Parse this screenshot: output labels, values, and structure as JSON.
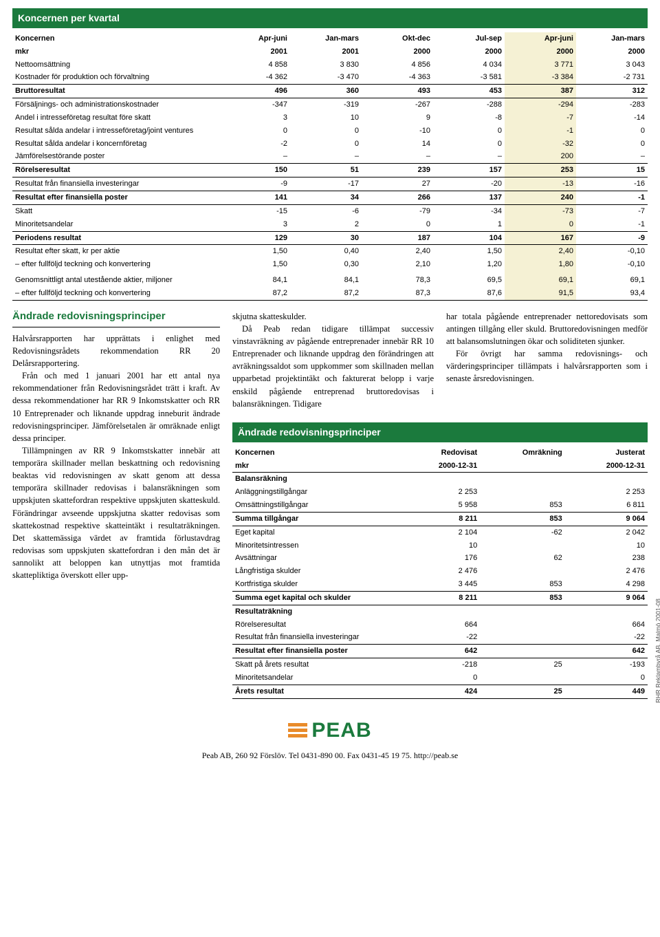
{
  "colors": {
    "green": "#1b7a3d",
    "highlight": "#f5f1d4",
    "orange": "#e98b2a"
  },
  "main_table": {
    "title": "Koncernen per kvartal",
    "header_top": [
      "Koncernen",
      "Apr-juni",
      "Jan-mars",
      "Okt-dec",
      "Jul-sep",
      "Apr-juni",
      "Jan-mars"
    ],
    "header_sub": [
      "mkr",
      "2001",
      "2001",
      "2000",
      "2000",
      "2000",
      "2000"
    ],
    "rows": [
      {
        "label": "Nettoomsättning",
        "vals": [
          "4 858",
          "3 830",
          "4 856",
          "4 034",
          "3 771",
          "3 043"
        ],
        "bot": false
      },
      {
        "label": "Kostnader för produktion och förvaltning",
        "vals": [
          "-4 362",
          "-3 470",
          "-4 363",
          "-3 581",
          "-3 384",
          "-2 731"
        ],
        "bot": true
      },
      {
        "label": "Bruttoresultat",
        "vals": [
          "496",
          "360",
          "493",
          "453",
          "387",
          "312"
        ],
        "bold": true,
        "top": false,
        "bot": false
      },
      {
        "label": "Försäljnings- och administrationskostnader",
        "vals": [
          "-347",
          "-319",
          "-267",
          "-288",
          "-294",
          "-283"
        ],
        "top": true
      },
      {
        "label": "Andel i intresseföretag resultat före skatt",
        "vals": [
          "3",
          "10",
          "9",
          "-8",
          "-7",
          "-14"
        ]
      },
      {
        "label": "Resultat sålda andelar i intresseföretag/joint ventures",
        "vals": [
          "0",
          "0",
          "-10",
          "0",
          "-1",
          "0"
        ]
      },
      {
        "label": "Resultat sålda andelar i koncernföretag",
        "vals": [
          "-2",
          "0",
          "14",
          "0",
          "-32",
          "0"
        ]
      },
      {
        "label": "Jämförelsestörande poster",
        "vals": [
          "–",
          "–",
          "–",
          "–",
          "200",
          "–"
        ],
        "bot": true
      },
      {
        "label": "Rörelseresultat",
        "vals": [
          "150",
          "51",
          "239",
          "157",
          "253",
          "15"
        ],
        "bold": true
      },
      {
        "label": "Resultat från finansiella investeringar",
        "vals": [
          "-9",
          "-17",
          "27",
          "-20",
          "-13",
          "-16"
        ],
        "top": true,
        "bot": true
      },
      {
        "label": "Resultat efter finansiella poster",
        "vals": [
          "141",
          "34",
          "266",
          "137",
          "240",
          "-1"
        ],
        "bold": true
      },
      {
        "label": "Skatt",
        "vals": [
          "-15",
          "-6",
          "-79",
          "-34",
          "-73",
          "-7"
        ],
        "top": true
      },
      {
        "label": "Minoritetsandelar",
        "vals": [
          "3",
          "2",
          "0",
          "1",
          "0",
          "-1"
        ],
        "bot": true
      },
      {
        "label": "Periodens resultat",
        "vals": [
          "129",
          "30",
          "187",
          "104",
          "167",
          "-9"
        ],
        "bold": true
      },
      {
        "label": "Resultat efter skatt, kr per aktie",
        "vals": [
          "1,50",
          "0,40",
          "2,40",
          "1,50",
          "2,40",
          "-0,10"
        ],
        "top": true
      },
      {
        "label": "– efter fullföljd teckning och konvertering",
        "vals": [
          "1,50",
          "0,30",
          "2,10",
          "1,20",
          "1,80",
          "-0,10"
        ],
        "bot": false
      },
      {
        "label": "Genomsnittligt antal utestående aktier, miljoner",
        "vals": [
          "84,1",
          "84,1",
          "78,3",
          "69,5",
          "69,1",
          "69,1"
        ],
        "gaptop": true
      },
      {
        "label": "– efter fullföljd teckning och konvertering",
        "vals": [
          "87,2",
          "87,2",
          "87,3",
          "87,6",
          "91,5",
          "93,4"
        ],
        "bot": true
      }
    ],
    "highlight_col": 5
  },
  "article": {
    "heading": "Ändrade redovisningsprinciper",
    "p1": "Halvårsrapporten har upprättats i enlighet med Redovisningsrådets rekommendation RR 20 Delårsrapportering.",
    "p2": "Från och med 1 januari 2001 har ett antal nya rekommendationer från Redovisningsrådet trätt i kraft. Av dessa rekommendationer har RR 9 Inkomstskatter och RR 10 Entreprenader och liknande uppdrag inneburit ändrade redovisningsprinciper. Jämförelsetalen är omräknade enligt dessa principer.",
    "p3": "Tillämpningen av RR 9 Inkomstskatter innebär att temporära skillnader mellan beskattning och redovisning beaktas vid redovisningen av skatt genom att dessa temporära skillnader redovisas i balansräkningen som uppskjuten skattefordran respektive uppskjuten skatteskuld. Förändringar avseende uppskjutna skatter redovisas som skattekostnad respektive skatteintäkt i resultaträkningen. Det skattemässiga värdet av framtida förlustavdrag redovisas som uppskjuten skattefordran i den mån det är sannolikt att beloppen kan utnyttjas mot framtida skattepliktiga överskott eller uppskjutna skatteskulder.",
    "p4": "Då Peab redan tidigare tillämpat successiv vinstavräkning av pågående entreprenader innebär RR 10 Entreprenader och liknande uppdrag den förändringen att avräkningssaldot som uppkommer som skillnaden mellan upparbetad projektintäkt och fakturerat belopp i varje enskild pågående entreprenad bruttoredovisas i balansräkningen. Tidigare har totala pågående entreprenader nettoredovisats som antingen tillgång eller skuld. Bruttoredovisningen medför att balansomslutningen ökar och soliditeten sjunker.",
    "p5": "För övrigt har samma redovisnings- och värderingsprinciper tillämpats i halvårsrapporten som i senaste årsredovisningen."
  },
  "small_table": {
    "title": "Ändrade redovisningsprinciper",
    "header_top": [
      "Koncernen",
      "Redovisat",
      "Omräkning",
      "Justerat"
    ],
    "header_sub": [
      "mkr",
      "2000-12-31",
      "",
      "2000-12-31"
    ],
    "rows": [
      {
        "label": "Balansräkning",
        "vals": [
          "",
          "",
          ""
        ],
        "bold": true,
        "top": true
      },
      {
        "label": "Anläggningstillgångar",
        "vals": [
          "2 253",
          "",
          "2 253"
        ]
      },
      {
        "label": "Omsättningstillgångar",
        "vals": [
          "5 958",
          "853",
          "6 811"
        ],
        "bot": true
      },
      {
        "label": "Summa tillgångar",
        "vals": [
          "8 211",
          "853",
          "9 064"
        ],
        "bold": true,
        "bot": true
      },
      {
        "label": "Eget kapital",
        "vals": [
          "2 104",
          "-62",
          "2 042"
        ]
      },
      {
        "label": "Minoritetsintressen",
        "vals": [
          "10",
          "",
          "10"
        ]
      },
      {
        "label": "Avsättningar",
        "vals": [
          "176",
          "62",
          "238"
        ]
      },
      {
        "label": "Långfristiga skulder",
        "vals": [
          "2 476",
          "",
          "2 476"
        ]
      },
      {
        "label": "Kortfristiga skulder",
        "vals": [
          "3 445",
          "853",
          "4 298"
        ],
        "bot": true
      },
      {
        "label": "Summa eget kapital och skulder",
        "vals": [
          "8 211",
          "853",
          "9 064"
        ],
        "bold": true,
        "bot": true
      },
      {
        "label": "Resultaträkning",
        "vals": [
          "",
          "",
          ""
        ],
        "bold": true
      },
      {
        "label": "Rörelseresultat",
        "vals": [
          "664",
          "",
          "664"
        ]
      },
      {
        "label": "Resultat från finansiella investeringar",
        "vals": [
          "-22",
          "",
          "-22"
        ],
        "bot": true
      },
      {
        "label": "Resultat efter finansiella poster",
        "vals": [
          "642",
          "",
          "642"
        ],
        "bold": true,
        "bot": true
      },
      {
        "label": "Skatt på årets resultat",
        "vals": [
          "-218",
          "25",
          "-193"
        ]
      },
      {
        "label": "Minoritetsandelar",
        "vals": [
          "0",
          "",
          "0"
        ],
        "bot": true
      },
      {
        "label": "Årets resultat",
        "vals": [
          "424",
          "25",
          "449"
        ],
        "bold": true,
        "bot": true
      }
    ]
  },
  "footer": {
    "company": "PEAB",
    "line": "Peab AB, 260 92 Förslöv. Tel 0431-890 00. Fax 0431-45 19 75. http://peab.se"
  },
  "side_credit": "RHR Reklambyrå AB, Malmö 2001-08"
}
